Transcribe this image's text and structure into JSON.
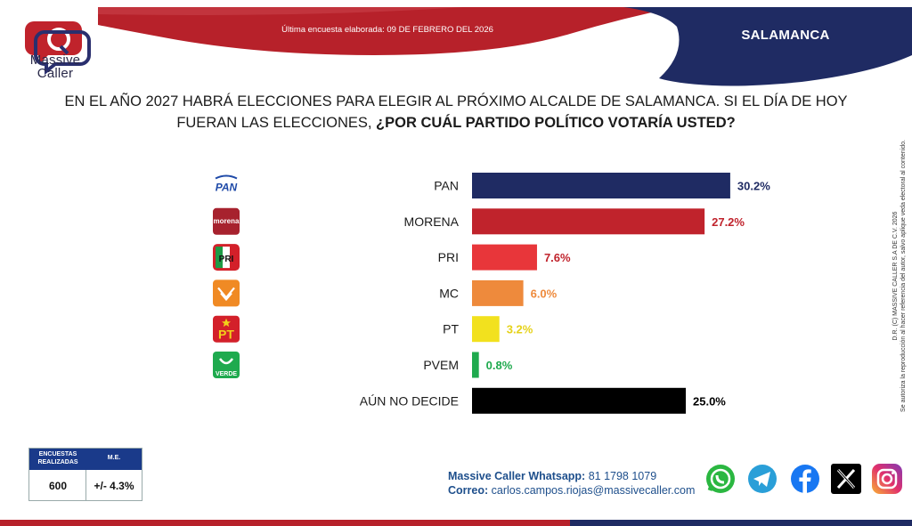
{
  "header": {
    "brand_line1": "Massive",
    "brand_line2": "Caller",
    "survey_date": "Última encuesta elaborada: 09 DE FEBRERO DEL 2026",
    "region": "SALAMANCA"
  },
  "question": {
    "line1": "EN EL AÑO 2027 HABRÁ ELECCIONES PARA ELEGIR AL PRÓXIMO ALCALDE DE SALAMANCA. SI EL DÍA DE HOY",
    "line2_plain": "FUERAN LAS ELECCIONES, ",
    "line2_bold": "¿POR CUÁL PARTIDO POLÍTICO VOTARÍA USTED?"
  },
  "colors": {
    "navy": "#1f2b63",
    "red": "#c0232c",
    "accent_blue": "#1a3a8a"
  },
  "chart_data": {
    "type": "bar",
    "orientation": "horizontal",
    "categories": [
      "PAN",
      "MORENA",
      "PRI",
      "MC",
      "PT",
      "PVEM",
      "AÚN NO DECIDE"
    ],
    "values": [
      30.2,
      27.2,
      7.6,
      6.0,
      3.2,
      0.8,
      25.0
    ],
    "value_labels": [
      "30.2%",
      "27.2%",
      "7.6%",
      "6.0%",
      "3.2%",
      "0.8%",
      "25.0%"
    ],
    "colors": [
      "#1f2b63",
      "#c0232c",
      "#e8363a",
      "#ee8a3c",
      "#f2e11e",
      "#1faa4e",
      "#000000"
    ],
    "label_colors": [
      "#1f2b63",
      "#c0232c",
      "#c0232c",
      "#ee8a3c",
      "#e6d21a",
      "#1faa4e",
      "#000000"
    ],
    "logo_icons": [
      "pan-logo-icon",
      "morena-logo-icon",
      "pri-logo-icon",
      "mc-logo-icon",
      "pt-logo-icon",
      "verde-logo-icon",
      ""
    ],
    "logo_texts": [
      "PAN",
      "morena",
      "PRI",
      "",
      "PT",
      "VERDE",
      ""
    ],
    "xlim": [
      0,
      32
    ]
  },
  "stats": {
    "col1_header_line1": "ENCUESTAS",
    "col1_header_line2": "REALIZADAS",
    "col2_header": "M.E.",
    "col1_value": "600",
    "col2_value": "+/- 4.3%"
  },
  "contact": {
    "whatsapp_label": "Massive Caller Whatsapp:",
    "whatsapp_number": "81 1798 1079",
    "email_label": "Correo:",
    "email": "carlos.campos.riojas@massivecaller.com"
  },
  "social": [
    "whatsapp-icon",
    "telegram-icon",
    "facebook-icon",
    "x-icon",
    "instagram-icon"
  ],
  "credit": {
    "line1": "D.R. (C) MASSIVE CALLER S.A DE C.V. 2026",
    "line2": "Se autoriza la reproducción al hacer referencia del autor, salvo aplique veda electoral al contenido."
  }
}
